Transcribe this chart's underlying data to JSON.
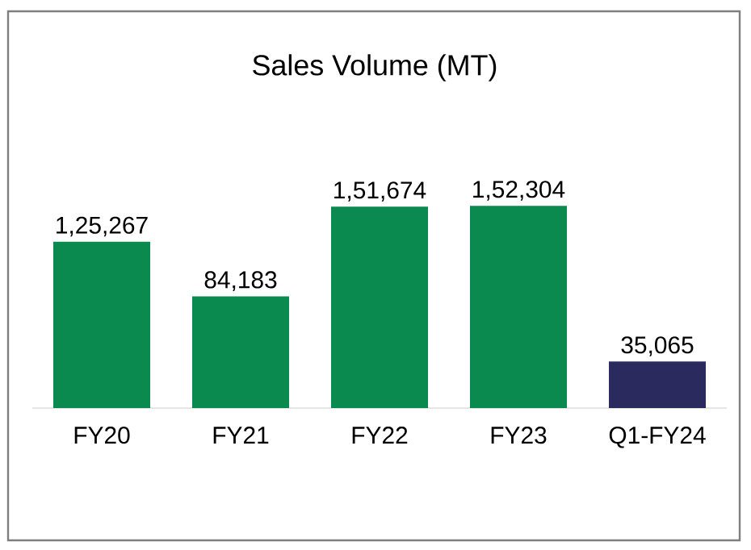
{
  "chart_data": {
    "type": "bar",
    "title": "Sales Volume (MT)",
    "categories": [
      "FY20",
      "FY21",
      "FY22",
      "FY23",
      "Q1-FY24"
    ],
    "values": [
      125267,
      84183,
      151674,
      152304,
      35065
    ],
    "value_labels": [
      "1,25,267",
      "84,183",
      "1,51,674",
      "1,52,304",
      "35,065"
    ],
    "colors": [
      "#0b8a4f",
      "#0b8a4f",
      "#0b8a4f",
      "#0b8a4f",
      "#2b2a5e"
    ]
  }
}
